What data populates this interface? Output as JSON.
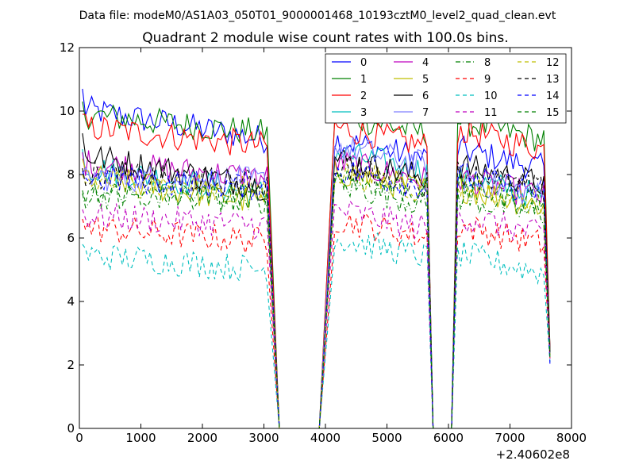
{
  "chart_data": {
    "type": "line",
    "supertitle": "Data file: modeM0/AS1A03_050T01_9000001468_10193cztM0_level2_quad_clean.evt",
    "title": "Quadrant 2 module wise count rates with 100.0s bins.",
    "xlabel": "",
    "ylabel": "",
    "x_offset_label": "+2.40602e8",
    "xlim": [
      0,
      8000
    ],
    "ylim": [
      0,
      12
    ],
    "x_ticks": [
      0,
      1000,
      2000,
      3000,
      4000,
      5000,
      6000,
      7000,
      8000
    ],
    "y_ticks": [
      0,
      2,
      4,
      6,
      8,
      10,
      12
    ],
    "x_tick_labels": [
      "0",
      "1000",
      "2000",
      "3000",
      "4000",
      "5000",
      "6000",
      "7000",
      "8000"
    ],
    "y_tick_labels": [
      "0",
      "2",
      "4",
      "6",
      "8",
      "10",
      "12"
    ],
    "legend_position": "top-right",
    "legend_columns": 4,
    "segments": [
      [
        50,
        3050
      ],
      [
        4150,
        5650
      ],
      [
        6150,
        7550
      ]
    ],
    "x_end": 7650,
    "series": [
      {
        "name": "0",
        "color": "#0000ff",
        "dash": "solid",
        "seg_levels": [
          9.1,
          8.8,
          8.5
        ],
        "start": 10.7,
        "end": 2.5
      },
      {
        "name": "1",
        "color": "#008000",
        "dash": "solid",
        "seg_levels": [
          9.3,
          9.6,
          9.4
        ],
        "start": 10.3,
        "end": 2.5
      },
      {
        "name": "2",
        "color": "#ff0000",
        "dash": "solid",
        "seg_levels": [
          8.9,
          9.2,
          9.1
        ],
        "start": 9.9,
        "end": 2.5
      },
      {
        "name": "3",
        "color": "#00bfbf",
        "dash": "solid",
        "seg_levels": [
          7.4,
          8.4,
          7.6
        ],
        "start": 8.8,
        "end": 2.4
      },
      {
        "name": "4",
        "color": "#bf00bf",
        "dash": "solid",
        "seg_levels": [
          7.9,
          8.1,
          7.6
        ],
        "start": 8.7,
        "end": 2.4
      },
      {
        "name": "5",
        "color": "#bfbf00",
        "dash": "solid",
        "seg_levels": [
          7.1,
          7.8,
          7.3
        ],
        "start": 8.5,
        "end": 2.4
      },
      {
        "name": "6",
        "color": "#000000",
        "dash": "solid",
        "seg_levels": [
          7.6,
          8.2,
          8.0
        ],
        "start": 9.3,
        "end": 2.4
      },
      {
        "name": "7",
        "color": "#7f7fff",
        "dash": "solid",
        "seg_levels": [
          7.8,
          8.6,
          7.6
        ],
        "start": 8.0,
        "end": 2.3
      },
      {
        "name": "8",
        "color": "#008000",
        "dash": "dashdot",
        "seg_levels": [
          7.3,
          7.4,
          7.0
        ],
        "start": 7.4,
        "end": 2.3
      },
      {
        "name": "9",
        "color": "#ff0000",
        "dash": "dash",
        "seg_levels": [
          5.9,
          6.3,
          6.1
        ],
        "start": 6.6,
        "end": 2.2
      },
      {
        "name": "10",
        "color": "#00bfbf",
        "dash": "dash",
        "seg_levels": [
          5.0,
          5.7,
          5.2
        ],
        "start": 5.8,
        "end": 2.1
      },
      {
        "name": "11",
        "color": "#bf00bf",
        "dash": "dash",
        "seg_levels": [
          6.4,
          6.6,
          6.4
        ],
        "start": 6.9,
        "end": 2.2
      },
      {
        "name": "12",
        "color": "#bfbf00",
        "dash": "dash",
        "seg_levels": [
          7.5,
          7.8,
          7.4
        ],
        "start": 8.0,
        "end": 2.3
      },
      {
        "name": "13",
        "color": "#000000",
        "dash": "dash",
        "seg_levels": [
          7.7,
          8.0,
          7.8
        ],
        "start": 8.2,
        "end": 2.3
      },
      {
        "name": "14",
        "color": "#0000ff",
        "dash": "dash",
        "seg_levels": [
          7.6,
          7.9,
          7.7
        ],
        "start": 8.1,
        "end": 2.0
      },
      {
        "name": "15",
        "color": "#008000",
        "dash": "dash",
        "seg_levels": [
          7.2,
          7.7,
          7.4
        ],
        "start": 7.5,
        "end": 2.2
      }
    ]
  }
}
